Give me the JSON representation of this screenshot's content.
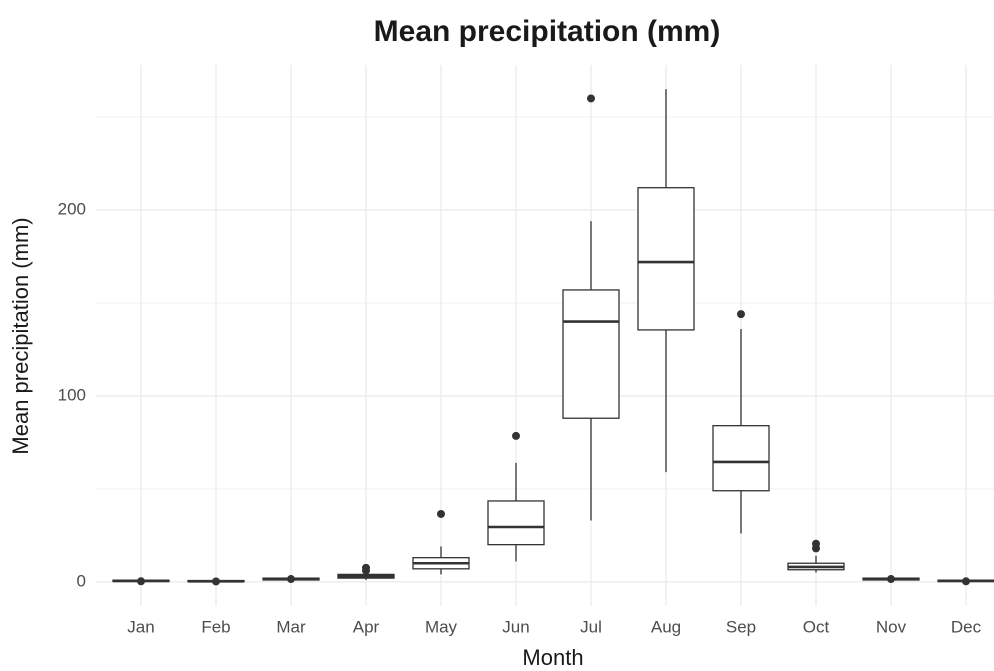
{
  "chart_data": {
    "type": "box",
    "title": "Mean precipitation (mm)",
    "x_label": "Month",
    "y_label": "Mean precipitation (mm)",
    "categories": [
      "Jan",
      "Feb",
      "Mar",
      "Apr",
      "May",
      "Jun",
      "Jul",
      "Aug",
      "Sep",
      "Oct",
      "Nov",
      "Dec"
    ],
    "boxes": [
      {
        "min": 0,
        "q1": 0.2,
        "median": 0.5,
        "q3": 0.9,
        "max": 1.5,
        "outliers": [
          0.3
        ]
      },
      {
        "min": 0,
        "q1": 0.1,
        "median": 0.3,
        "q3": 0.7,
        "max": 1.2,
        "outliers": [
          0.2
        ]
      },
      {
        "min": 0.5,
        "q1": 1,
        "median": 1.5,
        "q3": 2,
        "max": 2.5,
        "outliers": [
          1.5
        ]
      },
      {
        "min": 1,
        "q1": 2,
        "median": 3,
        "q3": 4,
        "max": 5,
        "outliers": [
          6,
          7.5
        ]
      },
      {
        "min": 4,
        "q1": 7,
        "median": 10,
        "q3": 13,
        "max": 19,
        "outliers": [
          36.5
        ]
      },
      {
        "min": 11,
        "q1": 20,
        "median": 29.5,
        "q3": 43.5,
        "max": 64,
        "outliers": [
          78.5
        ]
      },
      {
        "min": 33,
        "q1": 88,
        "median": 140,
        "q3": 157,
        "max": 194,
        "outliers": [
          260
        ]
      },
      {
        "min": 59,
        "q1": 135.5,
        "median": 172,
        "q3": 212,
        "max": 265,
        "outliers": []
      },
      {
        "min": 26,
        "q1": 49,
        "median": 64.5,
        "q3": 84,
        "max": 136,
        "outliers": [
          144
        ]
      },
      {
        "min": 5,
        "q1": 6.5,
        "median": 8,
        "q3": 10,
        "max": 14,
        "outliers": [
          18,
          20.5
        ]
      },
      {
        "min": 0.5,
        "q1": 1,
        "median": 1.5,
        "q3": 2,
        "max": 2.5,
        "outliers": [
          1.5
        ]
      },
      {
        "min": 0,
        "q1": 0.2,
        "median": 0.5,
        "q3": 0.9,
        "max": 1.3,
        "outliers": [
          0.3
        ]
      }
    ],
    "color": "#333333",
    "ylim": [
      -13,
      278
    ],
    "yticks": [
      0,
      100,
      200
    ],
    "minor_yticks": [
      50,
      150,
      250
    ],
    "grid": true
  }
}
